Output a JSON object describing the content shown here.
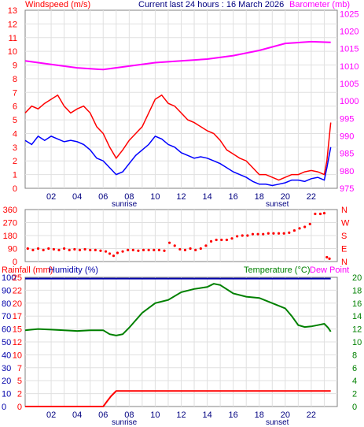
{
  "chart_data": [
    {
      "type": "line",
      "title": "Current last 24 hours : 16 March 2026",
      "ylabel_left": "Windspeed (m/s)",
      "ylabel_right": "Barometer (mb)",
      "xlim": [
        0,
        24
      ],
      "ylim_left": [
        0,
        13
      ],
      "ylim_right": [
        975,
        1026
      ],
      "x_tick_labels": [
        "02",
        "04",
        "06",
        "08",
        "10",
        "12",
        "14",
        "16",
        "18",
        "20",
        "22"
      ],
      "y_tick_labels_left": [
        "0",
        "1",
        "2",
        "3",
        "4",
        "5",
        "6",
        "7",
        "8",
        "9",
        "10",
        "11",
        "12",
        "13"
      ],
      "y_tick_labels_right": [
        "975",
        "980",
        "985",
        "990",
        "995",
        "1000",
        "1005",
        "1010",
        "1015",
        "1020",
        "1025"
      ],
      "annotations": {
        "sunrise": "sunrise",
        "sunset": "sunset"
      },
      "grid": true,
      "colors": {
        "gust": "#ff0000",
        "wind": "#0000ff",
        "barometer": "#ff00ff",
        "frame": "#808080",
        "left_axis": "#ff0000",
        "right_axis": "#ff00ff"
      },
      "series": [
        {
          "name": "gust",
          "x": [
            0,
            0.5,
            1,
            1.5,
            2,
            2.5,
            3,
            3.5,
            4,
            4.5,
            5,
            5.5,
            6,
            6.5,
            7,
            7.5,
            8,
            8.5,
            9,
            9.5,
            10,
            10.5,
            11,
            11.5,
            12,
            12.5,
            13,
            13.5,
            14,
            14.5,
            15,
            15.5,
            16,
            16.5,
            17,
            17.5,
            18,
            18.5,
            19,
            19.5,
            20,
            20.5,
            21,
            21.5,
            22,
            22.5,
            23,
            23.2,
            23.5
          ],
          "y": [
            5.5,
            6,
            5.8,
            6.2,
            6.5,
            6.8,
            6,
            5.5,
            5.8,
            6,
            5.5,
            4.5,
            4,
            3,
            2.2,
            2.8,
            3.5,
            4,
            4.5,
            5.5,
            6.5,
            6.8,
            6.2,
            6,
            5.5,
            5,
            4.8,
            4.5,
            4.2,
            4,
            3.5,
            2.8,
            2.5,
            2.2,
            2,
            1.5,
            1,
            1,
            0.8,
            0.6,
            0.8,
            1,
            1,
            1.2,
            1.3,
            1.2,
            1,
            2,
            4.8
          ]
        },
        {
          "name": "wind",
          "x": [
            0,
            0.5,
            1,
            1.5,
            2,
            2.5,
            3,
            3.5,
            4,
            4.5,
            5,
            5.5,
            6,
            6.5,
            7,
            7.5,
            8,
            8.5,
            9,
            9.5,
            10,
            10.5,
            11,
            11.5,
            12,
            12.5,
            13,
            13.5,
            14,
            14.5,
            15,
            15.5,
            16,
            16.5,
            17,
            17.5,
            18,
            18.5,
            19,
            19.5,
            20,
            20.5,
            21,
            21.5,
            22,
            22.5,
            23,
            23.2,
            23.5
          ],
          "y": [
            3.5,
            3.2,
            3.8,
            3.5,
            3.8,
            3.6,
            3.4,
            3.5,
            3.4,
            3.2,
            2.8,
            2.2,
            2,
            1.5,
            1,
            1.2,
            1.8,
            2.4,
            2.8,
            3.2,
            3.8,
            3.6,
            3.2,
            3,
            2.6,
            2.4,
            2.2,
            2.3,
            2.2,
            2,
            1.8,
            1.5,
            1.2,
            1,
            0.8,
            0.5,
            0.3,
            0.3,
            0.2,
            0.3,
            0.4,
            0.6,
            0.6,
            0.5,
            0.7,
            0.8,
            0.6,
            1.5,
            3
          ]
        },
        {
          "name": "barometer",
          "x": [
            0,
            2,
            4,
            6,
            8,
            10,
            12,
            14,
            16,
            18,
            20,
            22,
            23.5
          ],
          "y": [
            1011.5,
            1010.5,
            1009.5,
            1009,
            1010,
            1011,
            1011.5,
            1012,
            1013,
            1014.5,
            1016.5,
            1017,
            1016.8
          ]
        }
      ]
    },
    {
      "type": "scatter",
      "title": "",
      "xlim": [
        0,
        24
      ],
      "ylim": [
        0,
        360
      ],
      "x_tick_labels": [
        "02",
        "04",
        "06",
        "08",
        "10",
        "12",
        "14",
        "16",
        "18",
        "20",
        "22"
      ],
      "y_tick_labels_left": [
        "0",
        "90",
        "180",
        "270",
        "360"
      ],
      "y_tick_labels_right": [
        "N",
        "E",
        "S",
        "W",
        "N"
      ],
      "grid": true,
      "colors": {
        "points": "#ff0000",
        "frame": "#808080"
      },
      "series": [
        {
          "name": "wind direction",
          "x": [
            0.2,
            0.6,
            1,
            1.4,
            1.8,
            2.2,
            2.6,
            3,
            3.4,
            3.8,
            4.2,
            4.6,
            5,
            5.4,
            5.8,
            6.2,
            6.5,
            6.8,
            7.1,
            7.5,
            7.9,
            8.3,
            8.7,
            9.1,
            9.5,
            9.9,
            10.3,
            10.7,
            11.1,
            11.5,
            11.9,
            12.3,
            12.7,
            13.1,
            13.5,
            13.9,
            14.3,
            14.7,
            15.1,
            15.5,
            15.9,
            16.3,
            16.7,
            17.1,
            17.5,
            17.9,
            18.3,
            18.7,
            19.1,
            19.5,
            19.9,
            20.3,
            20.7,
            21.1,
            21.5,
            21.9,
            22.3,
            22.7,
            23,
            23.2,
            23.4
          ],
          "y": [
            90,
            80,
            90,
            80,
            90,
            85,
            80,
            90,
            80,
            85,
            80,
            85,
            80,
            80,
            75,
            70,
            55,
            40,
            60,
            70,
            80,
            80,
            75,
            80,
            80,
            80,
            80,
            75,
            130,
            110,
            85,
            80,
            90,
            80,
            90,
            110,
            140,
            150,
            150,
            150,
            160,
            175,
            180,
            180,
            190,
            190,
            190,
            195,
            195,
            195,
            195,
            200,
            215,
            230,
            240,
            260,
            330,
            330,
            335,
            30,
            20
          ]
        }
      ]
    },
    {
      "type": "line",
      "title": "",
      "ylabel_left_a": "Rainfall (mm)",
      "ylabel_left_b": "Humidity (%)",
      "ylabel_right_a": "Temperature (°C)",
      "ylabel_right_b": "Dew Point",
      "xlim": [
        0,
        24
      ],
      "ylim_humidity": [
        0,
        100
      ],
      "ylim_rain": [
        0,
        25
      ],
      "ylim_temperature": [
        0,
        20
      ],
      "x_tick_labels": [
        "02",
        "04",
        "06",
        "08",
        "10",
        "12",
        "14",
        "16",
        "18",
        "20",
        "22"
      ],
      "y_tick_labels_humidity": [
        "0",
        "10",
        "20",
        "30",
        "40",
        "50",
        "60",
        "70",
        "80",
        "90",
        "100"
      ],
      "y_tick_labels_rain": [
        "0",
        "2",
        "5",
        "7",
        "10",
        "12",
        "15",
        "17",
        "20",
        "22",
        "25"
      ],
      "y_tick_labels_right": [
        "0",
        "2",
        "4",
        "6",
        "8",
        "10",
        "12",
        "14",
        "16",
        "18",
        "20"
      ],
      "annotations": {
        "sunrise": "sunrise",
        "sunset": "sunset"
      },
      "grid": true,
      "colors": {
        "rain": "#ff0000",
        "humidity": "#0000aa",
        "temperature": "#008000",
        "dewpoint": "#ff00ff",
        "frame": "#808080"
      },
      "series": [
        {
          "name": "rain",
          "x": [
            0,
            6,
            6.3,
            6.6,
            7,
            8,
            10,
            12,
            14,
            16,
            18,
            20,
            22,
            23.5
          ],
          "y": [
            0,
            0,
            1,
            2,
            3,
            3,
            3,
            3,
            3,
            3,
            3,
            3,
            3,
            3
          ]
        },
        {
          "name": "humidity",
          "x": [
            0,
            2,
            4,
            6,
            8,
            10,
            12,
            14,
            16,
            18,
            20,
            22,
            23.5
          ],
          "y": [
            99,
            99,
            99,
            99,
            99,
            99,
            99,
            99,
            99,
            99,
            99,
            99,
            99
          ]
        },
        {
          "name": "temperature",
          "x": [
            0,
            0.5,
            1,
            2,
            3,
            4,
            5,
            6,
            6.5,
            7,
            7.5,
            8,
            9,
            10,
            11,
            12,
            13,
            14,
            14.5,
            15,
            16,
            17,
            18,
            19,
            20,
            20.5,
            21,
            21.5,
            22,
            22.5,
            23,
            23.3,
            23.5
          ],
          "y": [
            11.8,
            11.9,
            12,
            11.9,
            11.8,
            11.7,
            11.8,
            11.8,
            11.2,
            11,
            11.2,
            12.2,
            14.5,
            16,
            16.5,
            17.7,
            18.2,
            18.5,
            19,
            18.8,
            17.5,
            17,
            16.8,
            16,
            15.2,
            14,
            12.6,
            12.3,
            12.4,
            12.6,
            12.8,
            12.2,
            11.6
          ]
        }
      ]
    }
  ]
}
